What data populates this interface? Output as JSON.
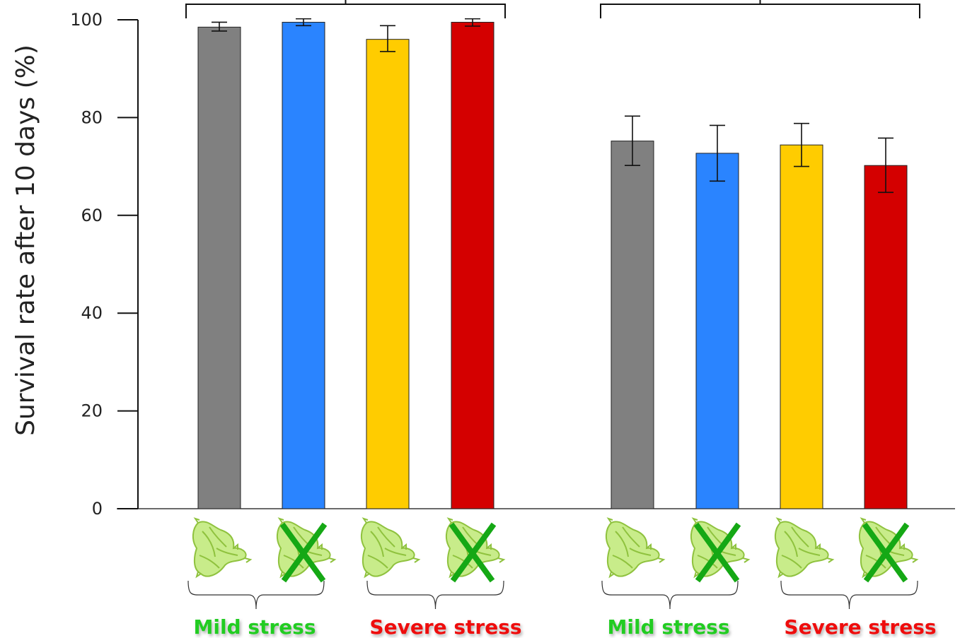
{
  "chart_data": {
    "type": "bar",
    "ylabel": "Survival rate after 10 days  (%)",
    "ylim": [
      0,
      100
    ],
    "yticks": [
      0,
      20,
      40,
      60,
      80,
      100
    ],
    "grid": false,
    "bars": [
      {
        "color": "#808080",
        "value": 98.5,
        "err_low": 97.7,
        "err_high": 99.5,
        "plant_crossed": false
      },
      {
        "color": "#2a84ff",
        "value": 99.5,
        "err_low": 98.8,
        "err_high": 100.2,
        "plant_crossed": true
      },
      {
        "color": "#ffcc00",
        "value": 96.0,
        "err_low": 93.5,
        "err_high": 98.8,
        "plant_crossed": false
      },
      {
        "color": "#d40000",
        "value": 99.5,
        "err_low": 98.7,
        "err_high": 100.2,
        "plant_crossed": true
      },
      {
        "color": "#808080",
        "value": 75.2,
        "err_low": 70.2,
        "err_high": 80.3,
        "plant_crossed": false
      },
      {
        "color": "#2a84ff",
        "value": 72.7,
        "err_low": 67.0,
        "err_high": 78.4,
        "plant_crossed": true
      },
      {
        "color": "#ffcc00",
        "value": 74.4,
        "err_low": 70.0,
        "err_high": 78.8,
        "plant_crossed": false
      },
      {
        "color": "#d40000",
        "value": 70.2,
        "err_low": 64.7,
        "err_high": 75.8,
        "plant_crossed": true
      }
    ],
    "groups": [
      {
        "label": "Mild stress",
        "color": "#22cc22"
      },
      {
        "label": "Severe stress",
        "color": "#ee1111"
      },
      {
        "label": "Mild stress",
        "color": "#22cc22"
      },
      {
        "label": "Severe stress",
        "color": "#ee1111"
      }
    ],
    "colors": {
      "axis": "#111111",
      "plant_light": "#c8ec8a",
      "plant_dark": "#8fc23e",
      "cross": "#15a815"
    }
  }
}
